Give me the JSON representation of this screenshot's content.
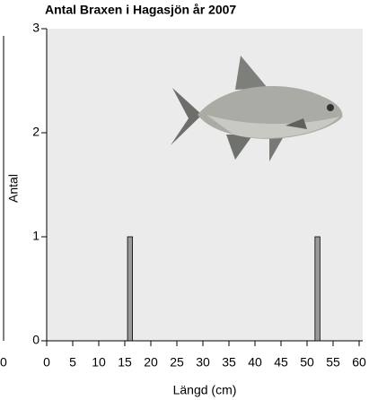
{
  "neighbor_tick": "0",
  "chart_data": {
    "type": "bar",
    "title": "Antal Braxen i Hagasjön år 2007",
    "x_label": "Längd (cm)",
    "y_label": "Antal",
    "x": [
      16,
      52
    ],
    "values": [
      1,
      1
    ],
    "color": "#999999",
    "xlim": [
      0,
      60
    ],
    "xticks": [
      0,
      5,
      10,
      15,
      20,
      25,
      30,
      35,
      40,
      45,
      50,
      55,
      60
    ],
    "ylim": [
      0,
      3
    ],
    "yticks": [
      0,
      1,
      2,
      3
    ],
    "grid": false
  }
}
